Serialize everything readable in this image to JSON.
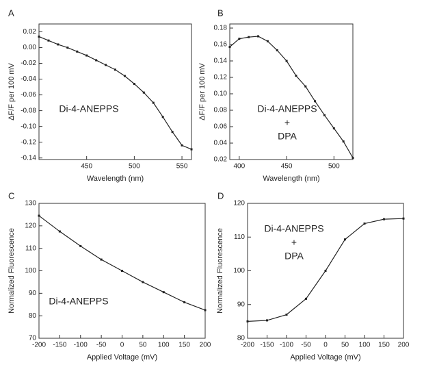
{
  "chart_data": [
    {
      "type": "line",
      "panel": "A",
      "xlabel": "Wavelength (nm)",
      "ylabel": "ΔF/F per 100 mV",
      "annotation": [
        "Di-4-ANEPPS"
      ],
      "x": [
        400,
        410,
        420,
        430,
        440,
        450,
        460,
        470,
        480,
        490,
        500,
        510,
        520,
        530,
        540,
        550,
        560
      ],
      "series": [
        {
          "color": "#222222",
          "values": [
            0.014,
            0.009,
            0.004,
            0.0,
            -0.005,
            -0.01,
            -0.016,
            -0.022,
            -0.028,
            -0.036,
            -0.046,
            -0.057,
            -0.07,
            -0.088,
            -0.107,
            -0.124,
            -0.129
          ]
        }
      ],
      "xlim": [
        400,
        560
      ],
      "xticks": [
        450,
        500,
        550
      ],
      "ylim": [
        -0.142,
        0.03
      ],
      "yticks": [
        -0.14,
        -0.12,
        {
          "value": -0.1,
          "label": "-0.10"
        },
        -0.08,
        -0.06,
        -0.04,
        -0.02,
        {
          "value": 0,
          "label": "0.00"
        },
        0.02
      ]
    },
    {
      "type": "line",
      "panel": "B",
      "xlabel": "Wavelength (nm)",
      "ylabel": "ΔF/F per 100 mV",
      "annotation": [
        "Di-4-ANEPPS",
        "+",
        "DPA"
      ],
      "x": [
        390,
        400,
        410,
        420,
        430,
        440,
        450,
        460,
        470,
        480,
        490,
        500,
        510,
        520
      ],
      "series": [
        {
          "color": "#222222",
          "values": [
            0.157,
            0.167,
            0.169,
            0.17,
            0.164,
            0.153,
            0.14,
            0.122,
            0.109,
            0.091,
            0.074,
            0.058,
            0.042,
            0.022
          ]
        }
      ],
      "xlim": [
        390,
        520
      ],
      "xticks": [
        400,
        450,
        500
      ],
      "ylim": [
        0.02,
        0.185
      ],
      "yticks": [
        0.02,
        0.04,
        0.06,
        0.08,
        {
          "value": 0.1,
          "label": "0.10"
        },
        0.12,
        0.14,
        0.16,
        0.18
      ]
    },
    {
      "type": "line",
      "panel": "C",
      "xlabel": "Applied Voltage (mV)",
      "ylabel": "Normalized Fluorescence",
      "annotation": [
        "Di-4-ANEPPS"
      ],
      "x": [
        -200,
        -150,
        -100,
        -50,
        0,
        50,
        100,
        150,
        200
      ],
      "series": [
        {
          "color": "#222222",
          "values": [
            124.5,
            117.5,
            111,
            105,
            100,
            95,
            90.5,
            86,
            82.5
          ]
        }
      ],
      "xlim": [
        -200,
        200
      ],
      "xticks": [
        -200,
        -150,
        -100,
        -50,
        0,
        50,
        100,
        150,
        200
      ],
      "ylim": [
        70,
        130
      ],
      "yticks": [
        70,
        80,
        90,
        100,
        110,
        120,
        130
      ]
    },
    {
      "type": "line",
      "panel": "D",
      "xlabel": "Applied Voltage (mV)",
      "ylabel": "Normalized Fluorescence",
      "annotation": [
        "Di-4-ANEPPS",
        "+",
        "DPA"
      ],
      "x": [
        -200,
        -150,
        -100,
        -50,
        0,
        50,
        100,
        150,
        200
      ],
      "series": [
        {
          "color": "#222222",
          "values": [
            85,
            85.3,
            87,
            91.7,
            100,
            109.3,
            114,
            115.3,
            115.5
          ]
        }
      ],
      "xlim": [
        -200,
        200
      ],
      "xticks": [
        -200,
        -150,
        -100,
        -50,
        0,
        50,
        100,
        150,
        200
      ],
      "ylim": [
        80,
        120
      ],
      "yticks": [
        80,
        90,
        100,
        110,
        120
      ]
    }
  ]
}
